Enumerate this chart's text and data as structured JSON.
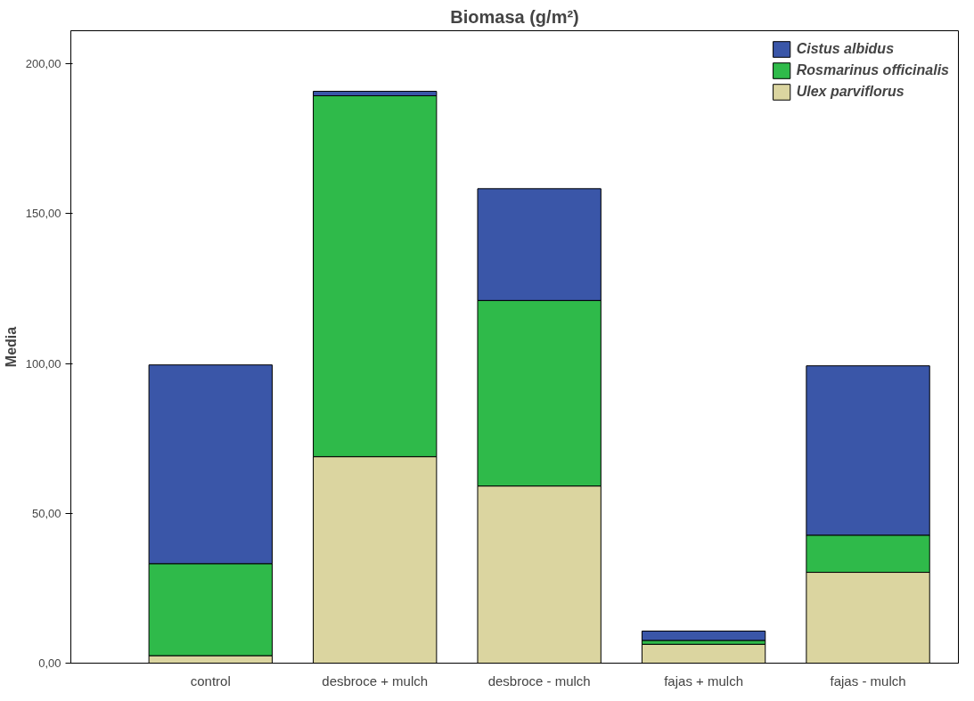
{
  "chart_data": {
    "type": "bar",
    "title": "Biomasa (g/m²)",
    "ylabel": "Media",
    "stacked": true,
    "legend": "top right",
    "grid": false,
    "categories": [
      "control",
      "desbroce + mulch",
      "desbroce - mulch",
      "fajas + mulch",
      "fajas - mulch"
    ],
    "ylim": [
      0,
      211
    ],
    "yticks": [
      {
        "value": 0,
        "label": "0,00"
      },
      {
        "value": 50,
        "label": "50,00"
      },
      {
        "value": 100,
        "label": "100,00"
      },
      {
        "value": 150,
        "label": "150,00"
      },
      {
        "value": 200,
        "label": "200,00"
      }
    ],
    "series": [
      {
        "name": "Ulex parviflorus",
        "color": "#dbd5a0",
        "values": [
          2.5,
          68.9,
          59.1,
          6.3,
          30.3
        ]
      },
      {
        "name": "Rosmarinus officinalis",
        "color": "#2fba4a",
        "values": [
          30.7,
          120.4,
          61.9,
          1.3,
          12.4
        ]
      },
      {
        "name": "Cistus albidus",
        "color": "#3a56a8",
        "values": [
          66.3,
          1.5,
          37.3,
          3.1,
          56.5
        ]
      }
    ]
  }
}
